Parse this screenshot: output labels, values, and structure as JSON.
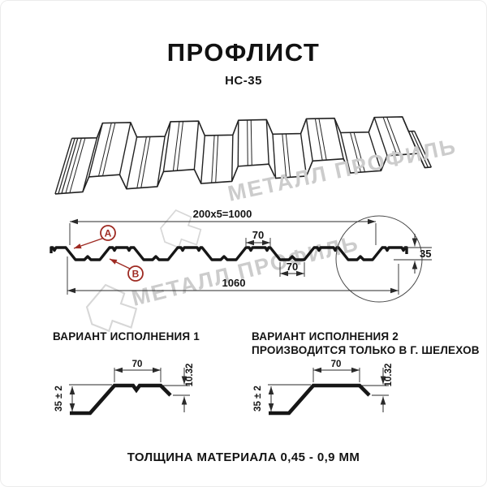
{
  "header": {
    "title": "ПРОФЛИСТ",
    "subtitle": "НС-35"
  },
  "section": {
    "point_a": "А",
    "point_b": "В",
    "dims": {
      "module": "200x5=1000",
      "crest_width": "70",
      "valley_width": "70",
      "total_width": "1060",
      "height": "35"
    }
  },
  "variants": [
    {
      "title": "ВАРИАНТ ИСПОЛНЕНИЯ 1",
      "subtitle": "",
      "dims": {
        "flange": "70",
        "drop": "10.32",
        "height": "35 ± 2"
      }
    },
    {
      "title": "ВАРИАНТ ИСПОЛНЕНИЯ 2",
      "subtitle": "ПРОИЗВОДИТСЯ ТОЛЬКО В Г. ШЕЛЕХОВ",
      "dims": {
        "flange": "70",
        "drop": "10.32",
        "height": "35 ± 2"
      }
    }
  ],
  "footer": {
    "text": "ТОЛЩИНА МАТЕРИАЛА 0,45 - 0,9 ММ"
  },
  "watermark": {
    "text": "МЕТАЛЛ ПРОФИЛЬ",
    "color": "#cccccc"
  },
  "colors": {
    "line": "#1b1b1b",
    "dim": "#2a2a2a",
    "red": "#9e2a22"
  }
}
